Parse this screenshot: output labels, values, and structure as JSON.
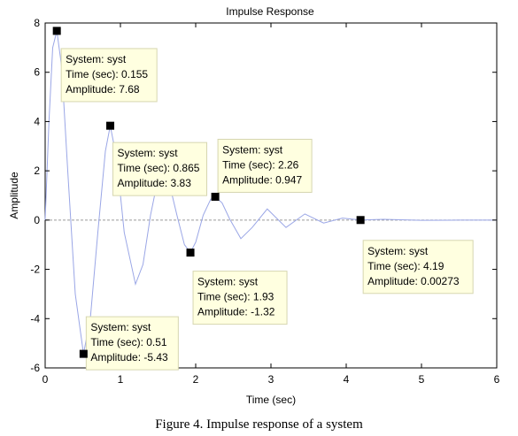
{
  "caption": "Figure 4. Impulse response of a system",
  "chart_data": {
    "type": "line",
    "title": "Impulse Response",
    "xlabel": "Time (sec)",
    "ylabel": "Amplitude",
    "xlim": [
      0,
      6
    ],
    "ylim": [
      -6,
      8
    ],
    "xticks": [
      0,
      1,
      2,
      3,
      4,
      5,
      6
    ],
    "yticks": [
      -6,
      -4,
      -2,
      0,
      2,
      4,
      6,
      8
    ],
    "grid": false,
    "line_color": "#9aa6e6",
    "zero_line_color": "#9a9a9a",
    "series": [
      {
        "x": [
          0,
          0.05,
          0.1,
          0.155,
          0.22,
          0.3,
          0.4,
          0.51,
          0.6,
          0.7,
          0.8,
          0.865,
          0.95,
          1.05,
          1.2,
          1.3,
          1.4,
          1.5,
          1.57,
          1.65,
          1.75,
          1.85,
          1.93,
          2.0,
          2.1,
          2.2,
          2.26,
          2.35,
          2.45,
          2.6,
          2.75,
          2.95,
          3.2,
          3.45,
          3.7,
          3.95,
          4.19,
          4.5,
          5.0,
          5.5,
          6.0
        ],
        "y": [
          0,
          4.0,
          7.0,
          7.68,
          6.2,
          2.0,
          -3.0,
          -5.43,
          -4.0,
          -0.5,
          2.8,
          3.83,
          2.5,
          -0.5,
          -2.6,
          -1.8,
          0.2,
          1.7,
          2.05,
          1.5,
          0.2,
          -1.0,
          -1.32,
          -0.9,
          0.2,
          0.85,
          0.947,
          0.7,
          0.05,
          -0.75,
          -0.3,
          0.45,
          -0.3,
          0.25,
          -0.12,
          0.08,
          0.00273,
          0.03,
          -0.01,
          0.0,
          0.0
        ]
      }
    ],
    "datatips": [
      {
        "system": "System: syst",
        "time": "Time (sec): 0.155",
        "amplitude": "Amplitude: 7.68",
        "x": 0.155,
        "y": 7.68
      },
      {
        "system": "System: syst",
        "time": "Time (sec): 0.865",
        "amplitude": "Amplitude: 3.83",
        "x": 0.865,
        "y": 3.83
      },
      {
        "system": "System: syst",
        "time": "Time (sec): 2.26",
        "amplitude": "Amplitude: 0.947",
        "x": 2.26,
        "y": 0.947
      },
      {
        "system": "System: syst",
        "time": "Time (sec): 4.19",
        "amplitude": "Amplitude: 0.00273",
        "x": 4.19,
        "y": 0.00273
      },
      {
        "system": "System: syst",
        "time": "Time (sec): 1.93",
        "amplitude": "Amplitude: -1.32",
        "x": 1.93,
        "y": -1.32
      },
      {
        "system": "System: syst",
        "time": "Time (sec): 0.51",
        "amplitude": "Amplitude: -5.43",
        "x": 0.51,
        "y": -5.43
      }
    ]
  }
}
